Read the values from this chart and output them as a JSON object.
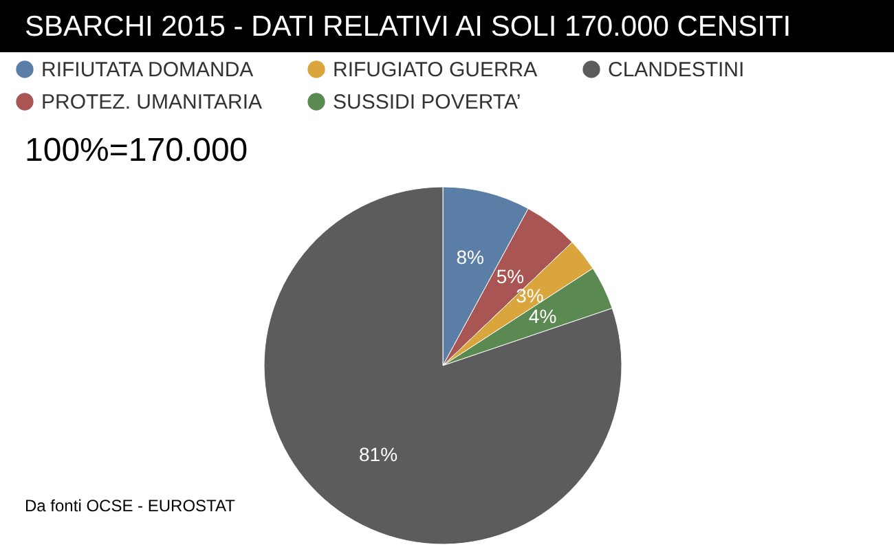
{
  "chart_data": {
    "type": "pie",
    "title": "SBARCHI 2015 - DATI RELATIVI AI SOLI 170.000 CENSITI",
    "categories": [
      "RIFIUTATA DOMANDA",
      "PROTEZ. UMANITARIA",
      "RIFUGIATO GUERRA",
      "SUSSIDI POVERTA’",
      "CLANDESTINI"
    ],
    "values": [
      8,
      5,
      3,
      4,
      81
    ],
    "colors": [
      "#5b7ea6",
      "#a85553",
      "#d9a53c",
      "#5a8a52",
      "#5c5c5c"
    ],
    "value_labels": [
      "8%",
      "5%",
      "3%",
      "4%",
      "81%"
    ],
    "legend": "top left",
    "annotations": [
      "100%=170.000",
      "Da fonti OCSE  - EUROSTAT"
    ]
  }
}
